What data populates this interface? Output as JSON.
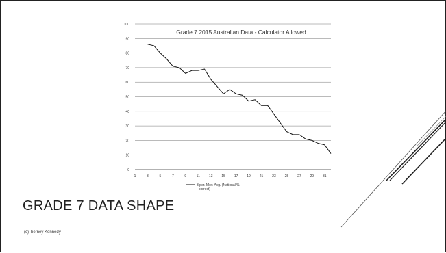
{
  "slide": {
    "title": "GRADE 7 DATA SHAPE",
    "footer": "(c) Tierney Kennedy"
  },
  "chart_data": {
    "type": "line",
    "title": "Grade 7 2015 Australian Data - Calculator Allowed",
    "xlabel": "",
    "ylabel": "",
    "ylim": [
      0,
      100
    ],
    "xlim": [
      1,
      32
    ],
    "yticks": [
      0,
      10,
      20,
      30,
      40,
      50,
      60,
      70,
      80,
      90,
      100
    ],
    "xticks": [
      1,
      3,
      5,
      7,
      9,
      11,
      13,
      15,
      17,
      19,
      21,
      23,
      25,
      27,
      29,
      31
    ],
    "grid": true,
    "legend": "bottom",
    "series": [
      {
        "name": "3 per. Mov. Avg. (National % correct)",
        "x": [
          3,
          4,
          5,
          6,
          7,
          8,
          9,
          10,
          11,
          12,
          13,
          14,
          15,
          16,
          17,
          18,
          19,
          20,
          21,
          22,
          23,
          24,
          25,
          26,
          27,
          28,
          29,
          30,
          31,
          32
        ],
        "values": [
          86,
          85,
          80,
          76,
          71,
          70,
          66,
          68,
          68,
          69,
          62,
          57,
          52,
          55,
          52,
          51,
          47,
          48,
          44,
          44,
          38,
          32,
          26,
          24,
          24,
          21,
          20,
          18,
          17,
          11
        ],
        "color": "#111111"
      }
    ]
  }
}
